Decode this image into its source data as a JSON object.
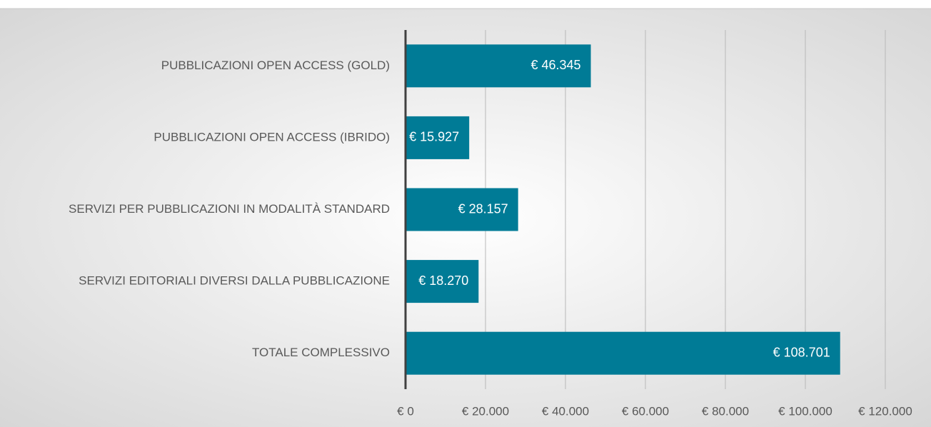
{
  "chart_data": {
    "type": "bar",
    "orientation": "horizontal",
    "categories": [
      "PUBBLICAZIONI OPEN ACCESS (GOLD)",
      "PUBBLICAZIONI OPEN ACCESS (IBRIDO)",
      "SERVIZI PER PUBBLICAZIONI IN MODALITÀ STANDARD",
      "SERVIZI EDITORIALI DIVERSI DALLA PUBBLICAZIONE",
      "TOTALE COMPLESSIVO"
    ],
    "values": [
      46345,
      15927,
      28157,
      18270,
      108701
    ],
    "value_labels": [
      "€ 46.345",
      "€ 15.927",
      "€ 28.157",
      "€ 18.270",
      "€ 108.701"
    ],
    "color": "#007b96",
    "xlim": [
      0,
      120000
    ],
    "xticks": [
      {
        "value": 0,
        "label": "€ 0"
      },
      {
        "value": 20000,
        "label": "€ 20.000"
      },
      {
        "value": 40000,
        "label": "€ 40.000"
      },
      {
        "value": 60000,
        "label": "€ 60.000"
      },
      {
        "value": 80000,
        "label": "€ 80.000"
      },
      {
        "value": 100000,
        "label": "€ 100.000"
      },
      {
        "value": 120000,
        "label": "€ 120.000"
      }
    ],
    "grid": true
  }
}
